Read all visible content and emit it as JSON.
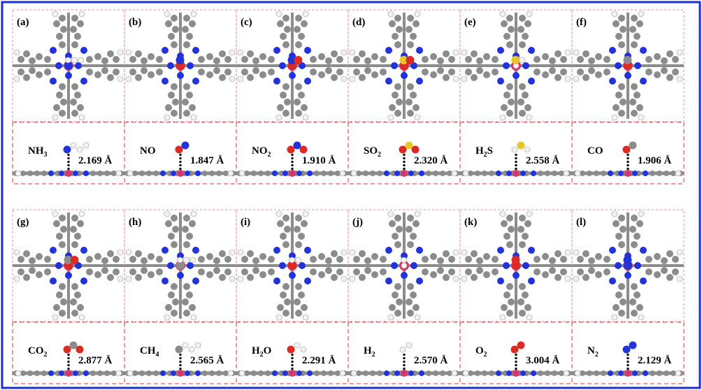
{
  "panels": [
    {
      "label": "(a)",
      "formula": [
        "NH",
        "3"
      ],
      "distance": "2.169 Å"
    },
    {
      "label": "(b)",
      "formula": [
        "NO"
      ],
      "distance": "1.847 Å"
    },
    {
      "label": "(c)",
      "formula": [
        "NO",
        "2"
      ],
      "distance": "1.910 Å"
    },
    {
      "label": "(d)",
      "formula": [
        "SO",
        "2"
      ],
      "distance": "2.320 Å"
    },
    {
      "label": "(e)",
      "formula": [
        "H",
        "2",
        "S"
      ],
      "distance": "2.558 Å"
    },
    {
      "label": "(f)",
      "formula": [
        "CO"
      ],
      "distance": "1.906 Å"
    },
    {
      "label": "(g)",
      "formula": [
        "CO",
        "2"
      ],
      "distance": "2.877 Å"
    },
    {
      "label": "(h)",
      "formula": [
        "CH",
        "4"
      ],
      "distance": "2.565 Å"
    },
    {
      "label": "(i)",
      "formula": [
        "H",
        "2",
        "O"
      ],
      "distance": "2.291 Å"
    },
    {
      "label": "(j)",
      "formula": [
        "H",
        "2"
      ],
      "distance": "2.570 Å"
    },
    {
      "label": "(k)",
      "formula": [
        "O",
        "2"
      ],
      "distance": "3.004 Å"
    },
    {
      "label": "(l)",
      "formula": [
        "N",
        "2"
      ],
      "distance": "2.129 Å"
    }
  ]
}
